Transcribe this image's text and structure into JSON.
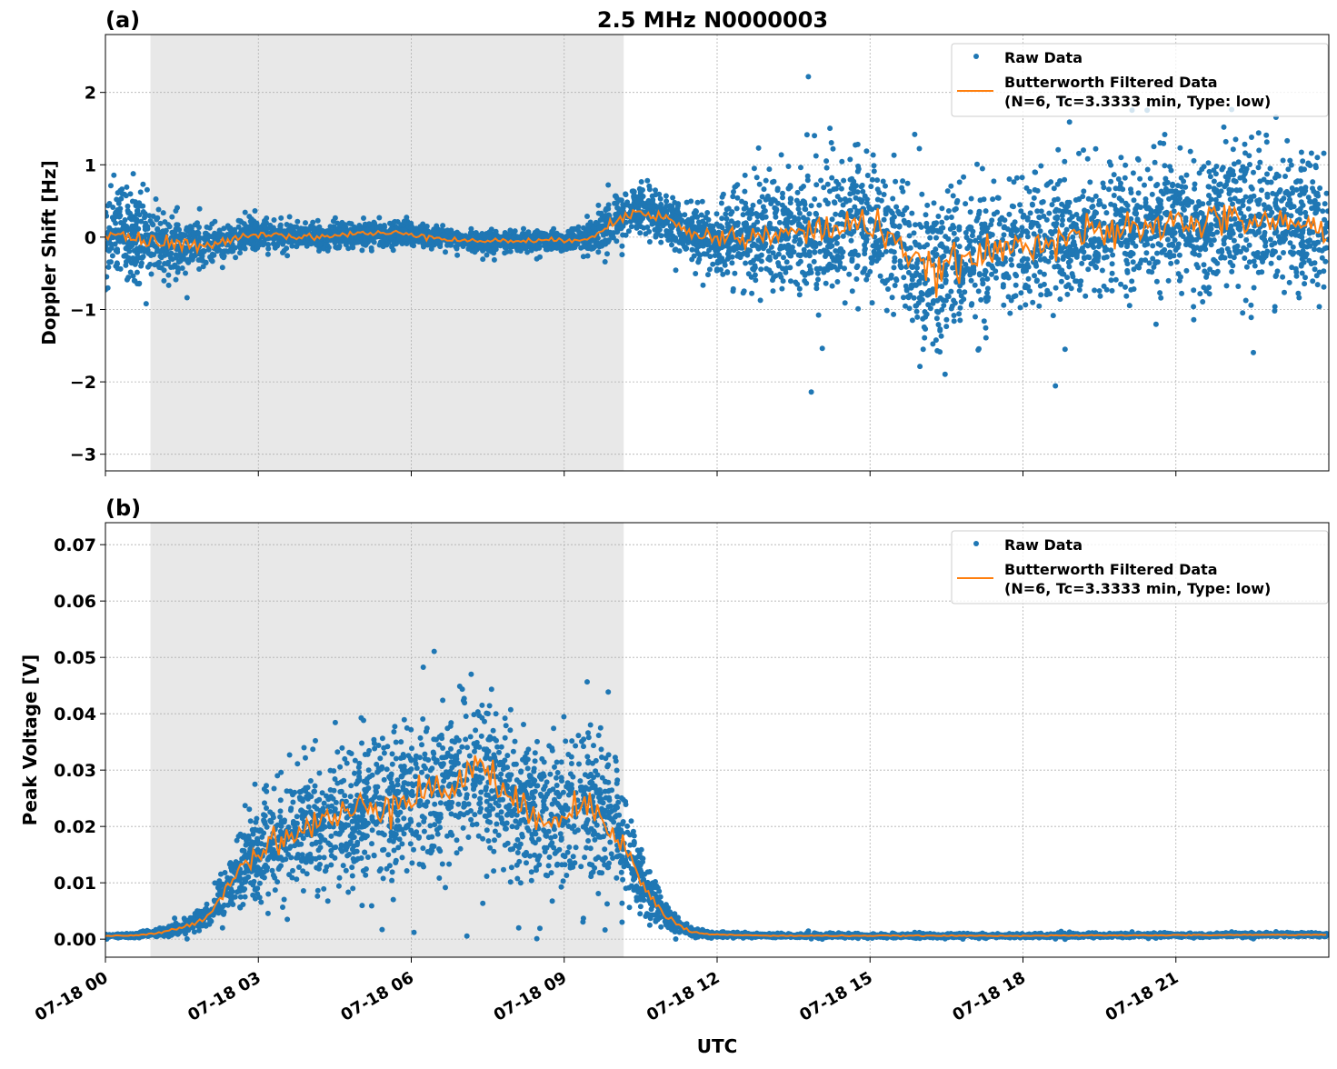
{
  "title": "2.5 MHz N0000003",
  "colors": {
    "raw": "#1f77b4",
    "filtered": "#ff7f0e",
    "shade": "#e8e8e8",
    "grid": "#b0b0b0"
  },
  "shaded_interval": [
    "00:53",
    "10:10"
  ],
  "xaxis": {
    "label": "UTC",
    "ticks": [
      "07-18 00",
      "07-18 03",
      "07-18 06",
      "07-18 09",
      "07-18 12",
      "07-18 15",
      "07-18 18",
      "07-18 21"
    ],
    "range_hours": [
      0,
      24
    ]
  },
  "legend": {
    "raw": "Raw Data",
    "filtered_line1": "Butterworth Filtered Data",
    "filtered_line2": "(N=6, Tc=3.3333 min, Type: low)",
    "placement": "upper-right"
  },
  "chart_data": [
    {
      "type": "scatter",
      "panel_label": "(a)",
      "ylabel": "Doppler Shift [Hz]",
      "ylim": [
        -3.23,
        2.8
      ],
      "yticks": [
        "2",
        "1",
        "0",
        "−1",
        "−2",
        "−3"
      ],
      "ytick_values": [
        2,
        1,
        0,
        -1,
        -2,
        -3
      ],
      "grid": true,
      "x_hours": [
        0,
        0.5,
        1,
        1.5,
        2,
        2.5,
        3,
        4,
        5,
        6,
        7,
        8,
        9,
        9.5,
        10,
        10.5,
        11,
        11.5,
        12,
        13,
        14,
        14.5,
        15,
        15.5,
        16,
        16.5,
        17,
        18,
        19,
        20,
        21,
        22,
        23,
        24
      ],
      "filtered": [
        0.1,
        0.0,
        -0.1,
        -0.1,
        -0.15,
        0.0,
        0.05,
        0.0,
        0.05,
        0.05,
        -0.05,
        -0.05,
        -0.05,
        0.0,
        0.2,
        0.4,
        0.25,
        0.05,
        0.0,
        0.0,
        0.1,
        0.15,
        0.2,
        0.0,
        -0.5,
        -0.4,
        -0.3,
        -0.1,
        0.05,
        0.05,
        0.2,
        0.25,
        0.2,
        0.1
      ],
      "raw_spread": [
        0.6,
        0.5,
        0.45,
        0.35,
        0.25,
        0.2,
        0.2,
        0.15,
        0.15,
        0.15,
        0.12,
        0.12,
        0.12,
        0.15,
        0.3,
        0.3,
        0.3,
        0.35,
        0.4,
        0.7,
        0.8,
        0.8,
        0.8,
        0.85,
        0.9,
        0.85,
        0.8,
        0.75,
        0.75,
        0.8,
        0.8,
        0.8,
        0.8,
        0.8
      ]
    },
    {
      "type": "scatter",
      "panel_label": "(b)",
      "ylabel": "Peak Voltage [V]",
      "ylim": [
        -0.0032,
        0.0739
      ],
      "yticks": [
        "0.07",
        "0.06",
        "0.05",
        "0.04",
        "0.03",
        "0.02",
        "0.01",
        "0.00"
      ],
      "ytick_values": [
        0.07,
        0.06,
        0.05,
        0.04,
        0.03,
        0.02,
        0.01,
        0.0
      ],
      "grid": true,
      "x_hours": [
        0,
        0.5,
        1,
        1.5,
        2,
        2.5,
        3,
        4,
        5,
        6,
        7,
        7.3,
        8,
        9,
        9.5,
        10,
        10.5,
        11,
        11.5,
        12,
        13,
        15,
        18,
        21,
        24
      ],
      "filtered": [
        0.0006,
        0.0006,
        0.001,
        0.002,
        0.004,
        0.011,
        0.016,
        0.02,
        0.023,
        0.026,
        0.027,
        0.033,
        0.023,
        0.022,
        0.024,
        0.02,
        0.01,
        0.004,
        0.0012,
        0.0008,
        0.0006,
        0.0006,
        0.0006,
        0.0007,
        0.0008
      ],
      "raw_spread": [
        0.0003,
        0.0003,
        0.0005,
        0.001,
        0.002,
        0.005,
        0.008,
        0.01,
        0.011,
        0.012,
        0.012,
        0.012,
        0.011,
        0.011,
        0.011,
        0.01,
        0.005,
        0.002,
        0.0006,
        0.0004,
        0.0003,
        0.0003,
        0.0003,
        0.0003,
        0.0003
      ]
    }
  ]
}
